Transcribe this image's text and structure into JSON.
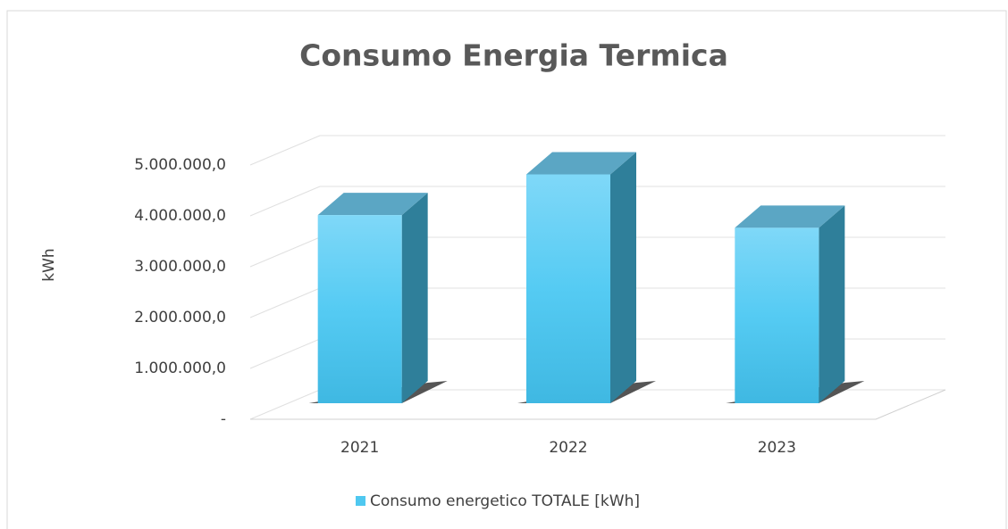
{
  "chart_data": {
    "type": "bar3d",
    "title": "Consumo Energia Termica",
    "y_label": "kWh",
    "categories": [
      "2021",
      "2022",
      "2023"
    ],
    "series": [
      {
        "name": "Consumo energetico TOTALE [kWh]",
        "color": "#4fc8f0",
        "values": [
          3700000,
          4500000,
          3450000
        ]
      }
    ],
    "ylim": [
      0,
      5000000
    ],
    "yticks": [
      {
        "value": 0,
        "label": "-"
      },
      {
        "value": 1000000,
        "label": "1.000.000,0"
      },
      {
        "value": 2000000,
        "label": "2.000.000,0"
      },
      {
        "value": 3000000,
        "label": "3.000.000,0"
      },
      {
        "value": 4000000,
        "label": "4.000.000,0"
      },
      {
        "value": 5000000,
        "label": "5.000.000,0"
      }
    ],
    "grid": true,
    "legend": "bottom"
  }
}
